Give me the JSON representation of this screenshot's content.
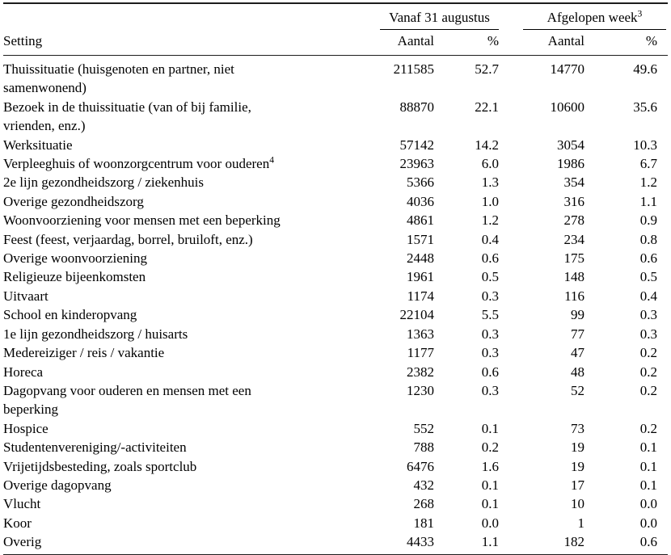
{
  "table": {
    "setting_header": "Setting",
    "group_headers": [
      {
        "label": "Vanaf 31 augustus",
        "sup": ""
      },
      {
        "label": "Afgelopen week",
        "sup": "3"
      }
    ],
    "sub_headers": [
      "Aantal",
      "%",
      "Aantal",
      "%"
    ],
    "rows": [
      {
        "setting": "Thuissituatie (huisgenoten en partner, niet\nsamenwonend)",
        "setting_sup": "",
        "vanaf_aantal": "211585",
        "vanaf_pct": "52.7",
        "week_aantal": "14770",
        "week_pct": "49.6"
      },
      {
        "setting": "Bezoek in de thuissituatie (van of bij familie,\nvrienden, enz.)",
        "setting_sup": "",
        "vanaf_aantal": "88870",
        "vanaf_pct": "22.1",
        "week_aantal": "10600",
        "week_pct": "35.6"
      },
      {
        "setting": "Werksituatie",
        "setting_sup": "",
        "vanaf_aantal": "57142",
        "vanaf_pct": "14.2",
        "week_aantal": "3054",
        "week_pct": "10.3"
      },
      {
        "setting": "Verpleeghuis of woonzorgcentrum voor ouderen",
        "setting_sup": "4",
        "vanaf_aantal": "23963",
        "vanaf_pct": "6.0",
        "week_aantal": "1986",
        "week_pct": "6.7"
      },
      {
        "setting": "2e lijn gezondheidszorg / ziekenhuis",
        "setting_sup": "",
        "vanaf_aantal": "5366",
        "vanaf_pct": "1.3",
        "week_aantal": "354",
        "week_pct": "1.2"
      },
      {
        "setting": "Overige gezondheidszorg",
        "setting_sup": "",
        "vanaf_aantal": "4036",
        "vanaf_pct": "1.0",
        "week_aantal": "316",
        "week_pct": "1.1"
      },
      {
        "setting": "Woonvoorziening voor mensen met een beperking",
        "setting_sup": "",
        "vanaf_aantal": "4861",
        "vanaf_pct": "1.2",
        "week_aantal": "278",
        "week_pct": "0.9"
      },
      {
        "setting": "Feest (feest, verjaardag, borrel, bruiloft, enz.)",
        "setting_sup": "",
        "vanaf_aantal": "1571",
        "vanaf_pct": "0.4",
        "week_aantal": "234",
        "week_pct": "0.8"
      },
      {
        "setting": "Overige woonvoorziening",
        "setting_sup": "",
        "vanaf_aantal": "2448",
        "vanaf_pct": "0.6",
        "week_aantal": "175",
        "week_pct": "0.6"
      },
      {
        "setting": "Religieuze bijeenkomsten",
        "setting_sup": "",
        "vanaf_aantal": "1961",
        "vanaf_pct": "0.5",
        "week_aantal": "148",
        "week_pct": "0.5"
      },
      {
        "setting": "Uitvaart",
        "setting_sup": "",
        "vanaf_aantal": "1174",
        "vanaf_pct": "0.3",
        "week_aantal": "116",
        "week_pct": "0.4"
      },
      {
        "setting": "School en kinderopvang",
        "setting_sup": "",
        "vanaf_aantal": "22104",
        "vanaf_pct": "5.5",
        "week_aantal": "99",
        "week_pct": "0.3"
      },
      {
        "setting": "1e lijn gezondheidszorg / huisarts",
        "setting_sup": "",
        "vanaf_aantal": "1363",
        "vanaf_pct": "0.3",
        "week_aantal": "77",
        "week_pct": "0.3"
      },
      {
        "setting": "Medereiziger / reis / vakantie",
        "setting_sup": "",
        "vanaf_aantal": "1177",
        "vanaf_pct": "0.3",
        "week_aantal": "47",
        "week_pct": "0.2"
      },
      {
        "setting": "Horeca",
        "setting_sup": "",
        "vanaf_aantal": "2382",
        "vanaf_pct": "0.6",
        "week_aantal": "48",
        "week_pct": "0.2"
      },
      {
        "setting": "Dagopvang voor ouderen en mensen met een\nbeperking",
        "setting_sup": "",
        "vanaf_aantal": "1230",
        "vanaf_pct": "0.3",
        "week_aantal": "52",
        "week_pct": "0.2"
      },
      {
        "setting": "Hospice",
        "setting_sup": "",
        "vanaf_aantal": "552",
        "vanaf_pct": "0.1",
        "week_aantal": "73",
        "week_pct": "0.2"
      },
      {
        "setting": "Studentenvereniging/-activiteiten",
        "setting_sup": "",
        "vanaf_aantal": "788",
        "vanaf_pct": "0.2",
        "week_aantal": "19",
        "week_pct": "0.1"
      },
      {
        "setting": "Vrijetijdsbesteding, zoals sportclub",
        "setting_sup": "",
        "vanaf_aantal": "6476",
        "vanaf_pct": "1.6",
        "week_aantal": "19",
        "week_pct": "0.1"
      },
      {
        "setting": "Overige dagopvang",
        "setting_sup": "",
        "vanaf_aantal": "432",
        "vanaf_pct": "0.1",
        "week_aantal": "17",
        "week_pct": "0.1"
      },
      {
        "setting": "Vlucht",
        "setting_sup": "",
        "vanaf_aantal": "268",
        "vanaf_pct": "0.1",
        "week_aantal": "10",
        "week_pct": "0.0"
      },
      {
        "setting": "Koor",
        "setting_sup": "",
        "vanaf_aantal": "181",
        "vanaf_pct": "0.0",
        "week_aantal": "1",
        "week_pct": "0.0"
      },
      {
        "setting": "Overig",
        "setting_sup": "",
        "vanaf_aantal": "4433",
        "vanaf_pct": "1.1",
        "week_aantal": "182",
        "week_pct": "0.6"
      }
    ]
  }
}
